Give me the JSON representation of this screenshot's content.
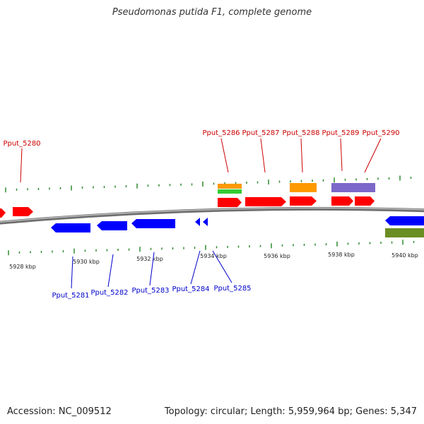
{
  "title": "Pseudomonas putida F1, complete genome",
  "footer": {
    "accession": "Accession: NC_009512",
    "summary": "Topology: circular; Length: 5,959,964 bp; Genes: 5,347"
  },
  "colors": {
    "forward_cds": "#ff0000",
    "reverse_cds": "#0000ff",
    "forward_label": "#cc0000",
    "reverse_label": "#0000cc",
    "backbone": "#888888",
    "tick": "#2e8b2e",
    "orange_feature": "#ff9900",
    "green_feature": "#33cc33",
    "purple_feature": "#7b68c8",
    "olive_feature": "#6b8e23"
  },
  "scale": {
    "labels": [
      "5928 kbp",
      "5930 kbp",
      "5932 kbp",
      "5934 kbp",
      "5936 kbp",
      "5938 kbp",
      "5940 kbp"
    ]
  },
  "forward_labels": [
    "Pput_5280",
    "Pput_5286",
    "Pput_5287",
    "Pput_5288",
    "Pput_5289",
    "Pput_5290"
  ],
  "reverse_labels": [
    "Pput_5281",
    "Pput_5282",
    "Pput_5283",
    "Pput_5284",
    "Pput_5285"
  ]
}
